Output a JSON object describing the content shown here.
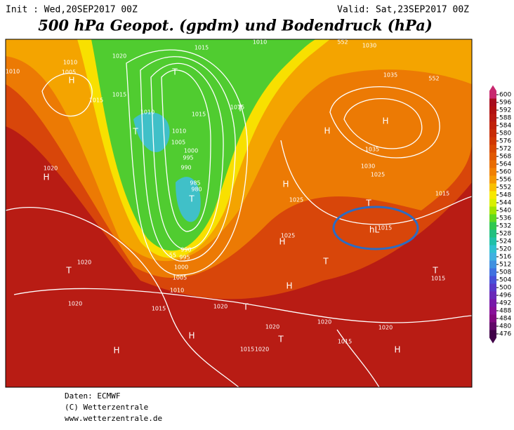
{
  "header": {
    "init": "Init : Wed,20SEP2017 00Z",
    "valid": "Valid: Sat,23SEP2017 00Z",
    "title": "500 hPa Geopot. (gpdm) und Bodendruck (hPa)"
  },
  "colorbar": {
    "ticks": [
      600,
      596,
      592,
      588,
      584,
      580,
      576,
      572,
      568,
      564,
      560,
      556,
      552,
      548,
      544,
      540,
      536,
      532,
      528,
      524,
      520,
      516,
      512,
      508,
      504,
      500,
      496,
      492,
      488,
      484,
      480,
      476
    ],
    "colors": [
      "#c8286e",
      "#a80c1c",
      "#b01010",
      "#b81810",
      "#c02008",
      "#c82c04",
      "#d03800",
      "#d84800",
      "#e05800",
      "#e86c00",
      "#f08000",
      "#f49800",
      "#f8c000",
      "#f8e800",
      "#d8f000",
      "#a0e400",
      "#60d820",
      "#30c850",
      "#20c080",
      "#20c0a8",
      "#30c0d0",
      "#40b0e0",
      "#4090e0",
      "#4070e0",
      "#4850d8",
      "#5838c8",
      "#6828b8",
      "#7818a8",
      "#881098",
      "#800880",
      "#600868",
      "#400048"
    ]
  },
  "map_labels": [
    "1020",
    "1015",
    "1010",
    "1010",
    "1005",
    "1015",
    "1015",
    "1010",
    "1015",
    "1015",
    "1010",
    "1005",
    "1000",
    "995",
    "990",
    "985",
    "980",
    "1020",
    "990",
    "995",
    "1000",
    "1005",
    "1010",
    "1015",
    "1020",
    "1020",
    "1020",
    "1035",
    "1035",
    "1030",
    "1025",
    "1025",
    "1025",
    "1015",
    "1015",
    "1015",
    "1020",
    "1020",
    "1020",
    "1015",
    "1015",
    "1020",
    "1010",
    "1030",
    "552",
    "552",
    "55",
    "H",
    "T",
    "T",
    "T",
    "H",
    "H",
    "H",
    "H",
    "T",
    "T",
    "H",
    "T",
    "H",
    "T",
    "T",
    "T",
    "H",
    "H",
    "H",
    "T",
    "hL"
  ],
  "footer": [
    "Daten: ECMWF",
    "(C) Wetterzentrale",
    "www.wetterzentrale.de"
  ]
}
